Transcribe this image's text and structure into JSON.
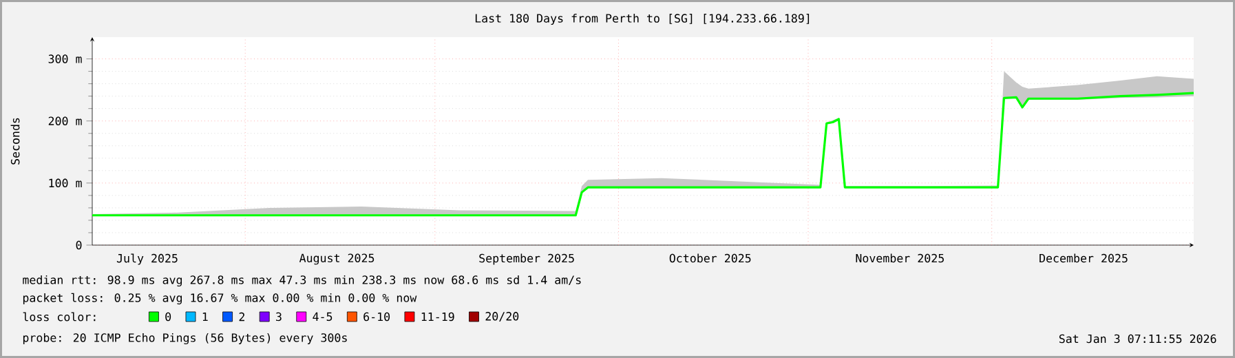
{
  "chart_data": {
    "type": "line",
    "title": "Last 180 Days from Perth to [SG] [194.233.66.189]",
    "ylabel": "Seconds",
    "xlim": [
      "2025-07-07",
      "2026-01-03"
    ],
    "ylim": [
      0,
      335
    ],
    "xticks": [
      {
        "value": "2025-07-16",
        "label": "July 2025"
      },
      {
        "value": "2025-08-01",
        "label": null
      },
      {
        "value": "2025-08-16",
        "label": "August 2025"
      },
      {
        "value": "2025-09-01",
        "label": null
      },
      {
        "value": "2025-09-16",
        "label": "September 2025"
      },
      {
        "value": "2025-10-01",
        "label": null
      },
      {
        "value": "2025-10-16",
        "label": "October 2025"
      },
      {
        "value": "2025-11-01",
        "label": null
      },
      {
        "value": "2025-11-16",
        "label": "November 2025"
      },
      {
        "value": "2025-12-01",
        "label": null
      },
      {
        "value": "2025-12-16",
        "label": "December 2025"
      }
    ],
    "yticks": [
      {
        "value": 0,
        "label": "0"
      },
      {
        "value": 100,
        "label": "100 m"
      },
      {
        "value": 200,
        "label": "200 m"
      },
      {
        "value": 300,
        "label": "300 m"
      }
    ],
    "grid": true,
    "legend": "bottom",
    "legend_title": "loss color:",
    "x": [
      "2025-07-07",
      "2025-07-20",
      "2025-08-05",
      "2025-08-20",
      "2025-09-05",
      "2025-09-24",
      "2025-09-25",
      "2025-09-26",
      "2025-10-08",
      "2025-10-20",
      "2025-11-03",
      "2025-11-04",
      "2025-11-05",
      "2025-11-06",
      "2025-11-07",
      "2025-11-20",
      "2025-12-02",
      "2025-12-03",
      "2025-12-05",
      "2025-12-06",
      "2025-12-07",
      "2025-12-15",
      "2025-12-22",
      "2025-12-28",
      "2026-01-03"
    ],
    "series": [
      {
        "name": "0",
        "color": "#00ff00",
        "values": [
          48,
          48,
          48,
          48,
          48,
          48,
          85,
          93,
          93,
          93,
          93,
          196,
          198,
          203,
          93,
          93,
          93,
          237,
          238,
          222,
          236,
          236,
          240,
          242,
          245
        ],
        "lower": [
          47,
          47,
          47,
          47,
          47,
          47,
          84,
          92,
          92,
          92,
          92,
          195,
          197,
          202,
          92,
          92,
          92,
          236,
          236,
          220,
          234,
          234,
          237,
          238,
          240
        ],
        "upper": [
          50,
          52,
          60,
          62,
          56,
          55,
          95,
          105,
          108,
          103,
          97,
          198,
          201,
          205,
          95,
          95,
          96,
          280,
          262,
          255,
          252,
          258,
          265,
          272,
          268
        ]
      },
      {
        "name": "1",
        "color": "#00b8ff",
        "values": [
          null,
          null,
          null,
          null,
          null,
          null,
          null,
          null,
          null,
          null,
          null,
          null,
          null,
          null,
          null,
          null,
          null,
          null,
          null,
          null,
          null,
          null,
          null,
          null,
          null
        ]
      },
      {
        "name": "2",
        "color": "#0059ff",
        "values": [
          null,
          null,
          null,
          null,
          null,
          null,
          null,
          null,
          null,
          null,
          null,
          null,
          null,
          null,
          null,
          null,
          null,
          null,
          null,
          null,
          null,
          null,
          null,
          null,
          null
        ]
      },
      {
        "name": "3",
        "color": "#7e00ff",
        "values": [
          null,
          null,
          null,
          null,
          null,
          null,
          null,
          null,
          null,
          null,
          null,
          null,
          null,
          null,
          null,
          null,
          null,
          null,
          null,
          null,
          null,
          null,
          null,
          null,
          null
        ]
      },
      {
        "name": "4-5",
        "color": "#ff00ff",
        "values": [
          null,
          null,
          null,
          null,
          null,
          null,
          null,
          null,
          null,
          null,
          null,
          null,
          null,
          null,
          null,
          null,
          null,
          null,
          null,
          null,
          null,
          null,
          null,
          null,
          null
        ]
      },
      {
        "name": "6-10",
        "color": "#ff5500",
        "values": [
          null,
          null,
          null,
          null,
          null,
          null,
          null,
          null,
          null,
          null,
          null,
          null,
          null,
          null,
          null,
          null,
          null,
          null,
          null,
          null,
          null,
          null,
          null,
          null,
          null
        ]
      },
      {
        "name": "11-19",
        "color": "#ff0000",
        "values": [
          null,
          null,
          null,
          null,
          null,
          null,
          null,
          null,
          null,
          null,
          null,
          null,
          null,
          null,
          null,
          null,
          null,
          null,
          null,
          null,
          null,
          null,
          null,
          null,
          null
        ]
      },
      {
        "name": "20/20",
        "color": "#a10000",
        "values": [
          null,
          null,
          null,
          null,
          null,
          null,
          null,
          null,
          null,
          null,
          null,
          null,
          null,
          null,
          null,
          null,
          null,
          null,
          null,
          null,
          null,
          null,
          null,
          null,
          null
        ]
      }
    ],
    "annotations": [
      "median rtt: 98.9 ms avg 267.8 ms max 47.3 ms min 238.3 ms now 68.6 ms sd 1.4 am/s",
      "packet loss: 0.25 % avg 16.67 % max 0.00 % min 0.00 % now",
      "probe: 20 ICMP Echo Pings (56 Bytes) every 300s",
      "Sat Jan 3 07:11:55 2026"
    ]
  }
}
